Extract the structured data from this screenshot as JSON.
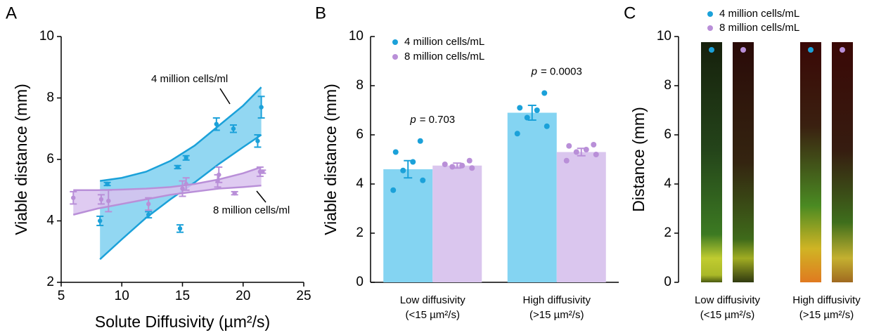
{
  "chart_data": [
    {
      "type": "scatter",
      "panel_label": "A",
      "x_label": "Solute Diffusivity (µm²/s)",
      "y_label": "Viable distance (mm)",
      "xlim": [
        5,
        25
      ],
      "ylim": [
        2,
        10
      ],
      "xticks": [
        5,
        10,
        15,
        20,
        25
      ],
      "yticks": [
        2,
        4,
        6,
        8,
        10
      ],
      "series": [
        {
          "name": "4 million cells/ml",
          "color": "#1ba1d9",
          "band_color": "#7fd0f0",
          "x": [
            8.2,
            8.8,
            12.2,
            14.6,
            14.8,
            15.3,
            17.8,
            19.2,
            21.2,
            21.5
          ],
          "values": [
            4.0,
            5.2,
            4.2,
            5.75,
            3.75,
            6.05,
            7.15,
            7.0,
            6.6,
            7.7
          ],
          "errors": [
            0.15,
            0.05,
            0.1,
            0.05,
            0.12,
            0.07,
            0.2,
            0.12,
            0.2,
            0.35
          ],
          "band": {
            "x": [
              8.2,
              10,
              12,
              14,
              16,
              18,
              20,
              21.5
            ],
            "upper": [
              5.3,
              5.4,
              5.6,
              5.95,
              6.45,
              7.1,
              7.75,
              8.35
            ],
            "lower": [
              2.75,
              3.4,
              4.1,
              4.7,
              5.25,
              5.85,
              6.4,
              6.8
            ]
          }
        },
        {
          "name": "8 million cells/ml",
          "color": "#b98fd8",
          "band_color": "#d9c2ef",
          "x": [
            6.0,
            8.3,
            8.9,
            12.2,
            15.0,
            15.3,
            17.9,
            18.0,
            19.3,
            21.4,
            21.6
          ],
          "values": [
            4.75,
            4.7,
            4.65,
            4.55,
            5.05,
            5.2,
            5.3,
            5.5,
            4.9,
            5.6,
            5.6
          ],
          "errors": [
            0.2,
            0.15,
            0.35,
            0.2,
            0.25,
            0.2,
            0.2,
            0.25,
            0.05,
            0.15,
            0.05
          ],
          "band": {
            "x": [
              6,
              8,
              10,
              12,
              14,
              16,
              18,
              20,
              21.5
            ],
            "upper": [
              5.0,
              5.0,
              5.02,
              5.05,
              5.1,
              5.2,
              5.35,
              5.55,
              5.75
            ],
            "lower": [
              4.2,
              4.4,
              4.55,
              4.7,
              4.85,
              4.95,
              5.05,
              5.1,
              5.15
            ]
          }
        }
      ]
    },
    {
      "type": "bar",
      "panel_label": "B",
      "y_label": "Viable distance (mm)",
      "ylim": [
        0,
        10
      ],
      "yticks": [
        0,
        2,
        4,
        6,
        8,
        10
      ],
      "categories": [
        [
          "Low diffusivity",
          "(<15 µm²/s)"
        ],
        [
          "High diffusivity",
          "(>15 µm²/s)"
        ]
      ],
      "series": [
        {
          "name": "4 million cells/mL",
          "color": "#1ba1d9",
          "bar_color": "#84d4f2",
          "values": [
            4.6,
            6.9
          ],
          "errors": [
            0.35,
            0.3
          ],
          "points": [
            [
              5.75,
              5.3,
              4.9,
              4.55,
              4.15,
              3.75
            ],
            [
              7.7,
              7.1,
              7.0,
              6.7,
              6.35,
              6.05
            ]
          ]
        },
        {
          "name": "8 million cells/mL",
          "color": "#b98fd8",
          "bar_color": "#dac6ee",
          "values": [
            4.75,
            5.3
          ],
          "errors": [
            0.1,
            0.15
          ],
          "points": [
            [
              4.95,
              4.8,
              4.75,
              4.7,
              4.65
            ],
            [
              5.6,
              5.55,
              5.4,
              5.3,
              5.2,
              4.95
            ]
          ]
        }
      ],
      "annotations": [
        {
          "symbol": "p",
          "text": "= 0.703"
        },
        {
          "symbol": "p",
          "text": "= 0.0003"
        }
      ]
    },
    {
      "type": "image",
      "panel_label": "C",
      "y_label": "Distance (mm)",
      "ylim": [
        0,
        10
      ],
      "yticks": [
        0,
        2,
        4,
        6,
        8,
        10
      ],
      "categories": [
        [
          "Low diffusivity",
          "(<15 µm²/s)"
        ],
        [
          "High diffusivity",
          "(>15 µm²/s)"
        ]
      ],
      "series": [
        {
          "name": "4 million cells/mL",
          "color": "#1ba1d9"
        },
        {
          "name": "8 million cells/mL",
          "color": "#b98fd8"
        }
      ]
    }
  ]
}
